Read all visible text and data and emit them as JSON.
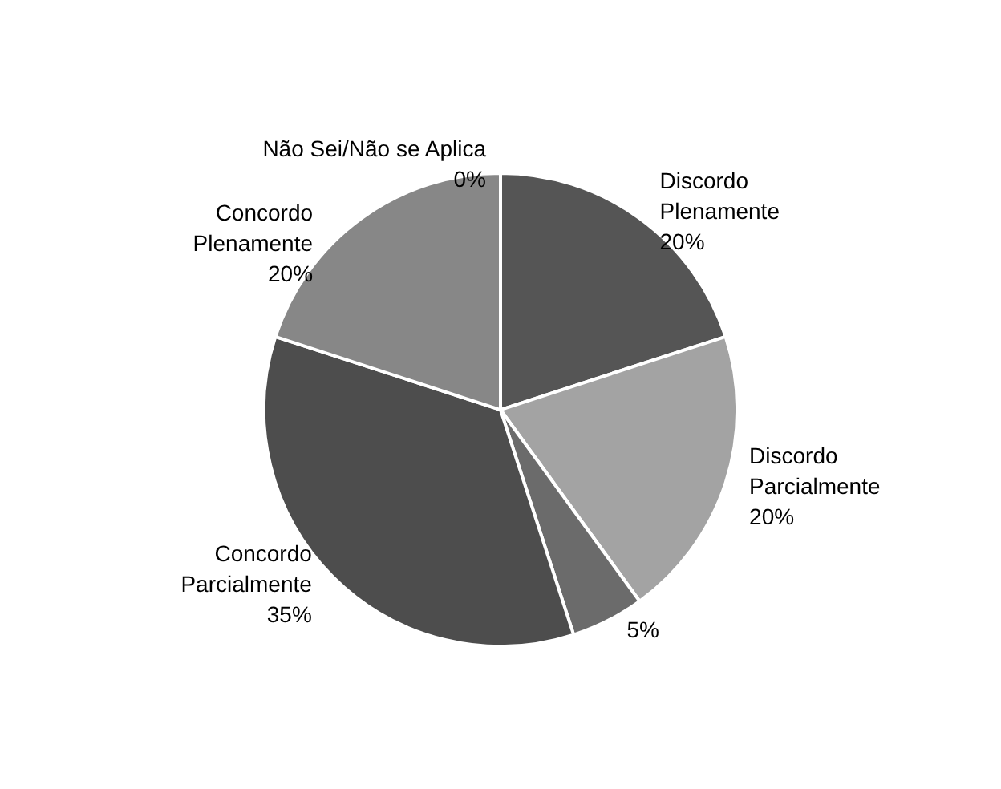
{
  "chart_data": {
    "type": "pie",
    "categories": [
      "Não Sei/Não se Aplica",
      "Discordo Plenamente",
      "Discordo Parcialmente",
      null,
      "Concordo Parcialmente",
      "Concordo Plenamente"
    ],
    "values": [
      0,
      20,
      20,
      5,
      35,
      20
    ],
    "value_labels": [
      "0%",
      "20%",
      "20%",
      "5%",
      "35%",
      "20%"
    ],
    "colors": [
      "#5a5a5a",
      "#555555",
      "#a3a3a3",
      "#6b6b6b",
      "#4d4d4d",
      "#878787"
    ],
    "legend": false
  }
}
